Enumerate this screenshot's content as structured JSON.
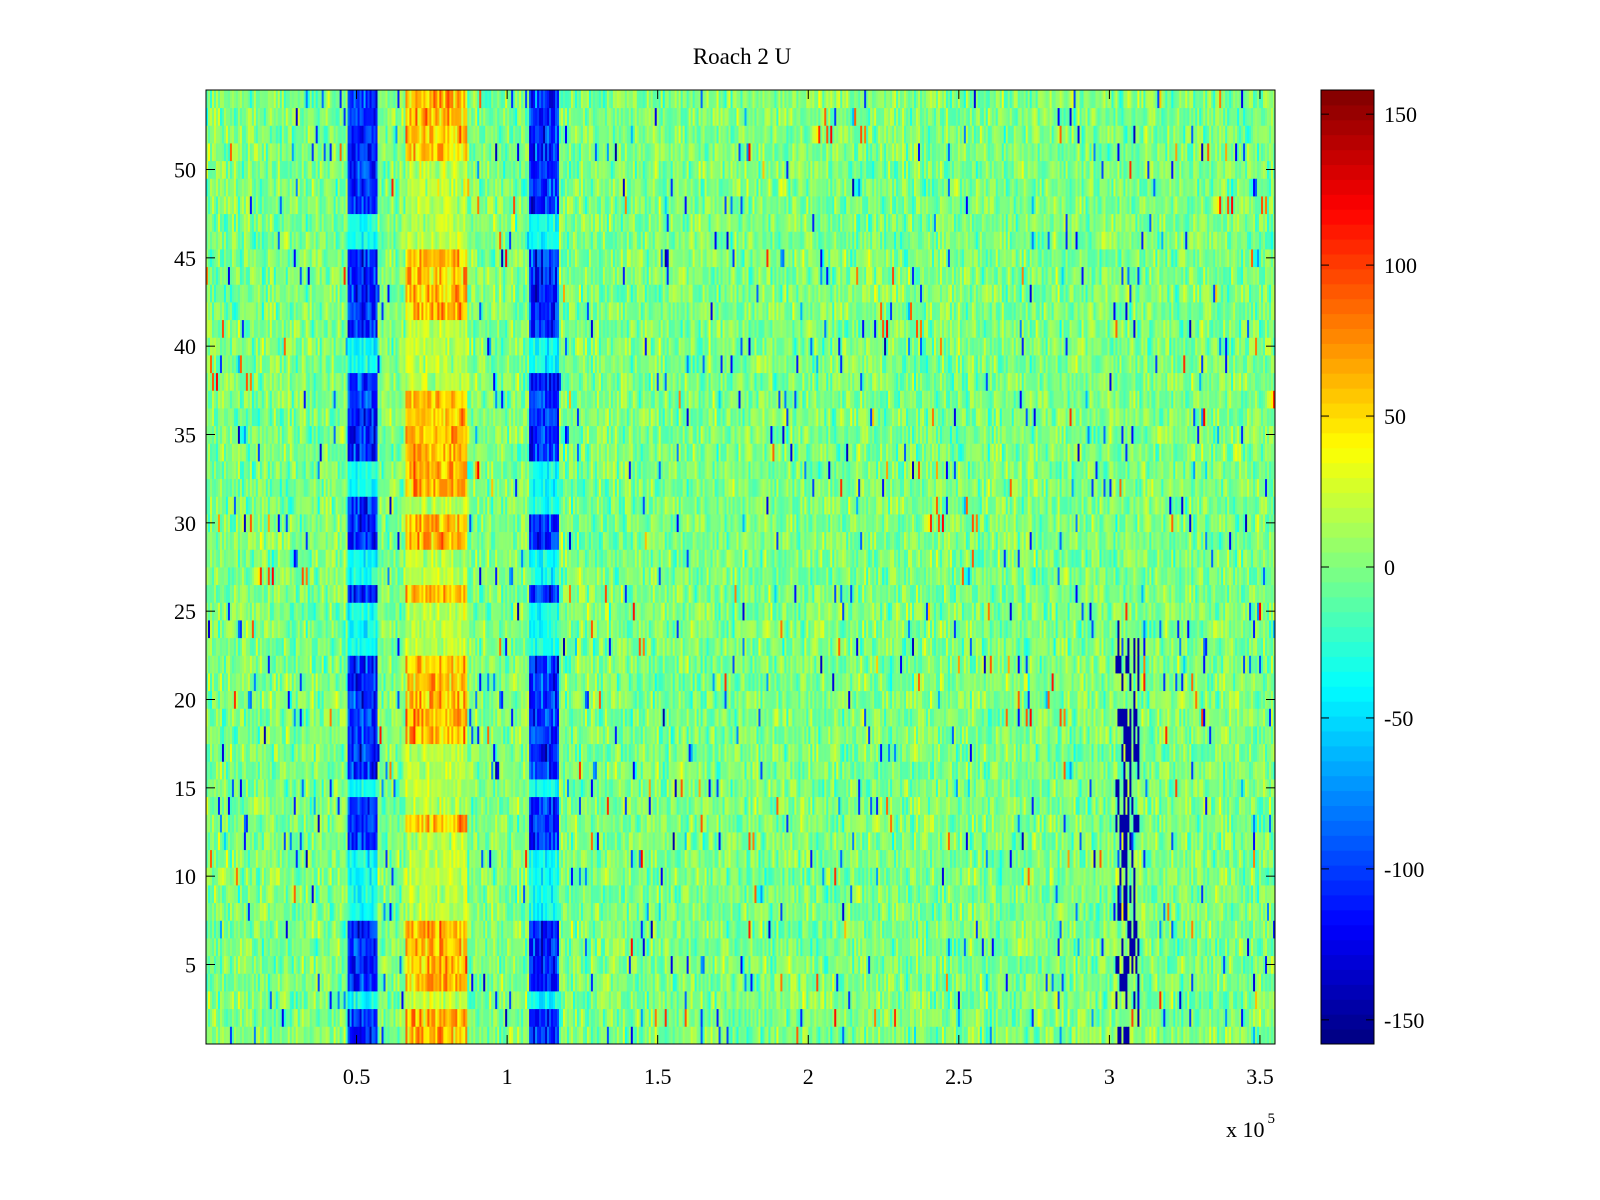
{
  "chart_data": {
    "type": "heatmap",
    "title": "Roach 2 U",
    "xlabel": "",
    "ylabel": "",
    "x_exponent_label": "x 10",
    "x_exponent_power": "5",
    "xlim": [
      0,
      355000
    ],
    "ylim": [
      0.5,
      54.5
    ],
    "n_rows": 54,
    "x_ticks": [
      {
        "value": 50000,
        "label": "0.5"
      },
      {
        "value": 100000,
        "label": "1"
      },
      {
        "value": 150000,
        "label": "1.5"
      },
      {
        "value": 200000,
        "label": "2"
      },
      {
        "value": 250000,
        "label": "2.5"
      },
      {
        "value": 300000,
        "label": "3"
      },
      {
        "value": 350000,
        "label": "3.5"
      }
    ],
    "y_ticks": [
      {
        "value": 5,
        "label": "5"
      },
      {
        "value": 10,
        "label": "10"
      },
      {
        "value": 15,
        "label": "15"
      },
      {
        "value": 20,
        "label": "20"
      },
      {
        "value": 25,
        "label": "25"
      },
      {
        "value": 30,
        "label": "30"
      },
      {
        "value": 35,
        "label": "35"
      },
      {
        "value": 40,
        "label": "40"
      },
      {
        "value": 45,
        "label": "45"
      },
      {
        "value": 50,
        "label": "50"
      }
    ],
    "colorbar": {
      "colormap": "jet",
      "clim": [
        -158,
        158
      ],
      "ticks": [
        {
          "value": 150,
          "label": "150"
        },
        {
          "value": 100,
          "label": "100"
        },
        {
          "value": 50,
          "label": "50"
        },
        {
          "value": 0,
          "label": "0"
        },
        {
          "value": -50,
          "label": "-50"
        },
        {
          "value": -100,
          "label": "-100"
        },
        {
          "value": -150,
          "label": "-150"
        }
      ]
    },
    "background_level": 0,
    "features": [
      {
        "kind": "low-band",
        "x_range": [
          47000,
          57000
        ],
        "level": -105,
        "rows": [
          1,
          2,
          4,
          5,
          6,
          7,
          12,
          13,
          14,
          16,
          17,
          18,
          19,
          20,
          21,
          22,
          26,
          29,
          30,
          31,
          34,
          35,
          36,
          37,
          38,
          41,
          42,
          43,
          44,
          45,
          48,
          49,
          50,
          51,
          52,
          53,
          54
        ]
      },
      {
        "kind": "high-band",
        "x_range": [
          66000,
          87000
        ],
        "level": 60,
        "rows": [
          1,
          2,
          4,
          5,
          6,
          7,
          13,
          18,
          19,
          20,
          21,
          22,
          26,
          29,
          30,
          32,
          33,
          34,
          35,
          36,
          37,
          42,
          43,
          44,
          45,
          51,
          52,
          53,
          54
        ]
      },
      {
        "kind": "low-band",
        "x_range": [
          107000,
          117000
        ],
        "level": -105,
        "rows": [
          1,
          2,
          4,
          5,
          6,
          7,
          12,
          13,
          14,
          16,
          17,
          18,
          19,
          20,
          21,
          22,
          26,
          29,
          30,
          34,
          35,
          36,
          37,
          38,
          41,
          42,
          43,
          44,
          45,
          48,
          49,
          50,
          51,
          52,
          53,
          54
        ]
      },
      {
        "kind": "spike-lines",
        "x_range": [
          302000,
          310000
        ],
        "rows_range": [
          1,
          24
        ]
      }
    ]
  }
}
